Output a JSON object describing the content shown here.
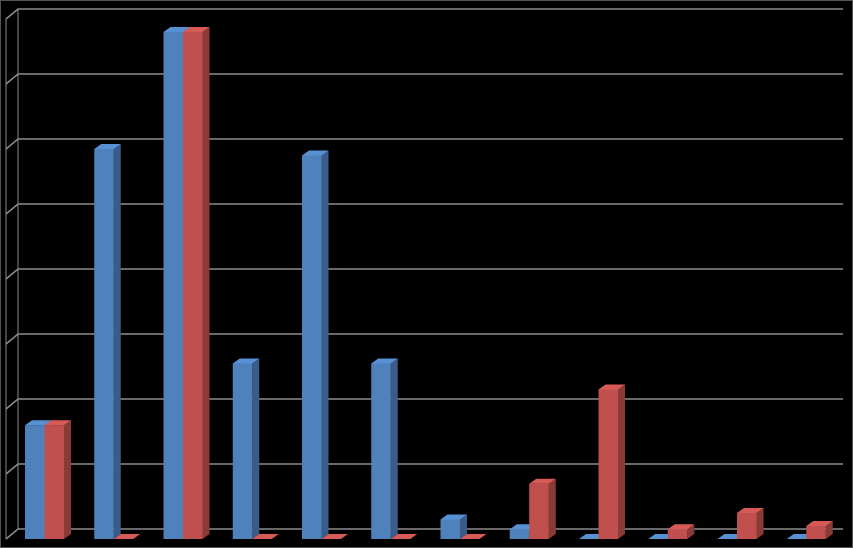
{
  "chart_data": {
    "type": "bar",
    "categories": [
      null,
      null,
      null,
      null,
      null,
      null,
      null,
      null,
      null,
      null,
      null,
      null
    ],
    "series": [
      {
        "color": "#4f81bd",
        "values": [
          1.75,
          6.0,
          7.8,
          2.7,
          5.9,
          2.7,
          0.3,
          0.15,
          0,
          0,
          0,
          0
        ]
      },
      {
        "color": "#c0504d",
        "values": [
          1.75,
          0,
          7.8,
          0,
          0,
          0,
          0,
          0.85,
          2.3,
          0.15,
          0.4,
          0.2
        ]
      }
    ],
    "ylim": [
      0,
      8
    ],
    "yticks": [
      0,
      1,
      2,
      3,
      4,
      5,
      6,
      7,
      8
    ],
    "grid": true
  }
}
